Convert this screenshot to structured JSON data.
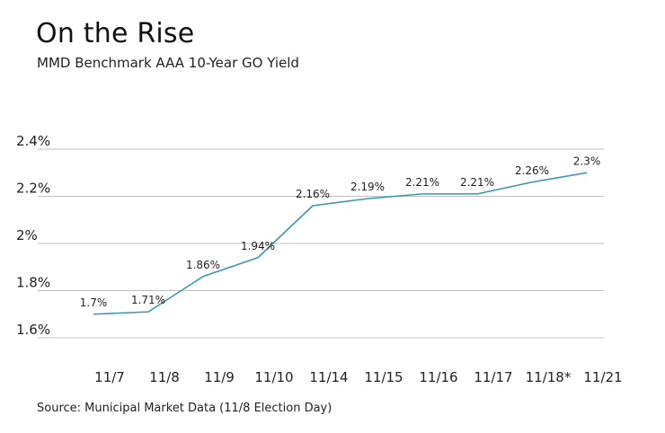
{
  "header": {
    "title": "On the Rise",
    "subtitle": "MMD Benchmark AAA 10-Year GO Yield"
  },
  "footer": {
    "source": "Source: Municipal Market Data (11/8 Election Day)"
  },
  "colors": {
    "line": "#3a97b4",
    "grid": "#bfbfbf",
    "text": "#222222"
  },
  "chart_data": {
    "type": "line",
    "title": "On the Rise",
    "subtitle": "MMD Benchmark AAA 10-Year GO Yield",
    "categories": [
      "11/7",
      "11/8",
      "11/9",
      "11/10",
      "11/14",
      "11/15",
      "11/16",
      "11/17",
      "11/18*",
      "11/21"
    ],
    "series": [
      {
        "values": [
          1.7,
          1.71,
          1.86,
          1.94,
          2.16,
          2.19,
          2.21,
          2.21,
          2.26,
          2.3
        ],
        "labels": [
          "1.7%",
          "1.71%",
          "1.86%",
          "1.94%",
          "2.16%",
          "2.19%",
          "2.21%",
          "2.21%",
          "2.26%",
          "2.3%"
        ]
      }
    ],
    "yticks": [
      1.6,
      1.8,
      2.0,
      2.2,
      2.4
    ],
    "ytick_labels": [
      "1.6%",
      "1.8%",
      "2%",
      "2.2%",
      "2.4%"
    ],
    "ylim": [
      1.6,
      2.4
    ],
    "grid": true,
    "xlabel": "",
    "ylabel": ""
  }
}
